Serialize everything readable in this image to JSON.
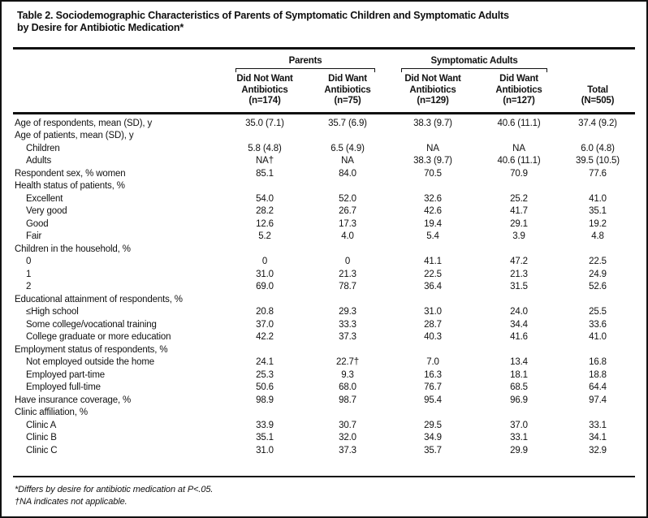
{
  "title": {
    "line1": "Table 2. Sociodemographic Characteristics of Parents of Symptomatic Children and Symptomatic Adults",
    "line2": "by Desire for Antibiotic Medication*"
  },
  "header": {
    "group_parents": "Parents",
    "group_adults": "Symptomatic Adults",
    "columns": [
      "Did Not Want\nAntibiotics\n(n=174)",
      "Did Want\nAntibiotics\n(n=75)",
      "Did Not Want\nAntibiotics\n(n=129)",
      "Did Want\nAntibiotics\n(n=127)",
      "Total\n(N=505)"
    ]
  },
  "table": {
    "rows": [
      {
        "label": "Age of respondents, mean (SD), y",
        "indent": 0,
        "values": [
          "35.0 (7.1)",
          "35.7 (6.9)",
          "38.3 (9.7)",
          "40.6 (11.1)",
          "37.4 (9.2)"
        ]
      },
      {
        "label": "Age of patients, mean (SD), y",
        "indent": 0,
        "values": [
          "",
          "",
          "",
          "",
          ""
        ]
      },
      {
        "label": "Children",
        "indent": 1,
        "values": [
          "5.8 (4.8)",
          "6.5 (4.9)",
          "NA",
          "NA",
          "6.0 (4.8)"
        ]
      },
      {
        "label": "Adults",
        "indent": 1,
        "values": [
          "NA†",
          "NA",
          "38.3 (9.7)",
          "40.6 (11.1)",
          "39.5 (10.5)"
        ]
      },
      {
        "label": "Respondent sex, % women",
        "indent": 0,
        "values": [
          "85.1",
          "84.0",
          "70.5",
          "70.9",
          "77.6"
        ]
      },
      {
        "label": "Health status of patients, %",
        "indent": 0,
        "values": [
          "",
          "",
          "",
          "",
          ""
        ]
      },
      {
        "label": "Excellent",
        "indent": 1,
        "values": [
          "54.0",
          "52.0",
          "32.6",
          "25.2",
          "41.0"
        ]
      },
      {
        "label": "Very good",
        "indent": 1,
        "values": [
          "28.2",
          "26.7",
          "42.6",
          "41.7",
          "35.1"
        ]
      },
      {
        "label": "Good",
        "indent": 1,
        "values": [
          "12.6",
          "17.3",
          "19.4",
          "29.1",
          "19.2"
        ]
      },
      {
        "label": "Fair",
        "indent": 1,
        "values": [
          "5.2",
          "4.0",
          "5.4",
          "3.9",
          "4.8"
        ]
      },
      {
        "label": "Children in the household, %",
        "indent": 0,
        "values": [
          "",
          "",
          "",
          "",
          ""
        ]
      },
      {
        "label": "0",
        "indent": 1,
        "values": [
          "0",
          "0",
          "41.1",
          "47.2",
          "22.5"
        ]
      },
      {
        "label": "1",
        "indent": 1,
        "values": [
          "31.0",
          "21.3",
          "22.5",
          "21.3",
          "24.9"
        ]
      },
      {
        "label": "2",
        "indent": 1,
        "values": [
          "69.0",
          "78.7",
          "36.4",
          "31.5",
          "52.6"
        ]
      },
      {
        "label": "Educational attainment of respondents, %",
        "indent": 0,
        "values": [
          "",
          "",
          "",
          "",
          ""
        ]
      },
      {
        "label": "≤High school",
        "indent": 1,
        "values": [
          "20.8",
          "29.3",
          "31.0",
          "24.0",
          "25.5"
        ]
      },
      {
        "label": "Some college/vocational training",
        "indent": 1,
        "values": [
          "37.0",
          "33.3",
          "28.7",
          "34.4",
          "33.6"
        ]
      },
      {
        "label": "College graduate or more education",
        "indent": 1,
        "values": [
          "42.2",
          "37.3",
          "40.3",
          "41.6",
          "41.0"
        ]
      },
      {
        "label": "Employment status of respondents, %",
        "indent": 0,
        "values": [
          "",
          "",
          "",
          "",
          ""
        ]
      },
      {
        "label": "Not employed outside the home",
        "indent": 1,
        "values": [
          "24.1",
          "22.7†",
          "7.0",
          "13.4",
          "16.8"
        ]
      },
      {
        "label": "Employed part-time",
        "indent": 1,
        "values": [
          "25.3",
          "9.3",
          "16.3",
          "18.1",
          "18.8"
        ]
      },
      {
        "label": "Employed full-time",
        "indent": 1,
        "values": [
          "50.6",
          "68.0",
          "76.7",
          "68.5",
          "64.4"
        ]
      },
      {
        "label": "Have insurance coverage, %",
        "indent": 0,
        "values": [
          "98.9",
          "98.7",
          "95.4",
          "96.9",
          "97.4"
        ]
      },
      {
        "label": "Clinic affiliation, %",
        "indent": 0,
        "values": [
          "",
          "",
          "",
          "",
          ""
        ]
      },
      {
        "label": "Clinic A",
        "indent": 1,
        "values": [
          "33.9",
          "30.7",
          "29.5",
          "37.0",
          "33.1"
        ]
      },
      {
        "label": "Clinic B",
        "indent": 1,
        "values": [
          "35.1",
          "32.0",
          "34.9",
          "33.1",
          "34.1"
        ]
      },
      {
        "label": "Clinic C",
        "indent": 1,
        "values": [
          "31.0",
          "37.3",
          "35.7",
          "29.9",
          "32.9"
        ]
      }
    ]
  },
  "footnotes": [
    "*Differs by desire for antibiotic medication at P<.05.",
    "†NA indicates not applicable."
  ]
}
